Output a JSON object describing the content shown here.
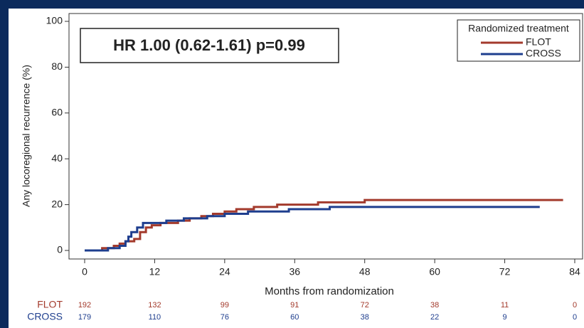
{
  "chart_data": {
    "type": "line",
    "step": true,
    "ylabel": "Any locoregional recurrence (%)",
    "xlabel": "Months from randomization",
    "annotation": "HR 1.00 (0.62-1.61) p=0.99",
    "legend_title": "Randomized treatment",
    "legend": "upper right",
    "xlim": [
      0,
      84
    ],
    "xticks": [
      0,
      12,
      24,
      36,
      48,
      60,
      72,
      84
    ],
    "ylim": [
      0,
      100
    ],
    "yticks": [
      0,
      20,
      40,
      60,
      80,
      100
    ],
    "series": [
      {
        "name": "FLOT",
        "color": "#a33a2c",
        "x": [
          0,
          3,
          5,
          6,
          7,
          8.5,
          9.5,
          10.5,
          11.5,
          13,
          16,
          18,
          20,
          22,
          24,
          26,
          29,
          33,
          40,
          48,
          82
        ],
        "values": [
          0,
          1,
          2,
          3,
          4,
          5,
          8,
          10,
          11,
          12,
          13,
          14,
          15,
          16,
          17,
          18,
          19,
          20,
          21,
          22,
          22
        ]
      },
      {
        "name": "CROSS",
        "color": "#1e3e8e",
        "x": [
          0,
          4,
          6,
          7,
          7.5,
          8,
          9,
          10,
          14,
          17,
          21,
          24,
          28,
          35,
          42,
          78
        ],
        "values": [
          0,
          1,
          2,
          4,
          6,
          8,
          10,
          12,
          13,
          14,
          15,
          16,
          17,
          18,
          19,
          19
        ]
      }
    ],
    "risk_table": [
      {
        "name": "FLOT",
        "color": "#a33a2c",
        "values": [
          192,
          132,
          99,
          91,
          72,
          38,
          11,
          0
        ]
      },
      {
        "name": "CROSS",
        "color": "#1e3e8e",
        "values": [
          179,
          110,
          76,
          60,
          38,
          22,
          9,
          0
        ]
      }
    ]
  }
}
